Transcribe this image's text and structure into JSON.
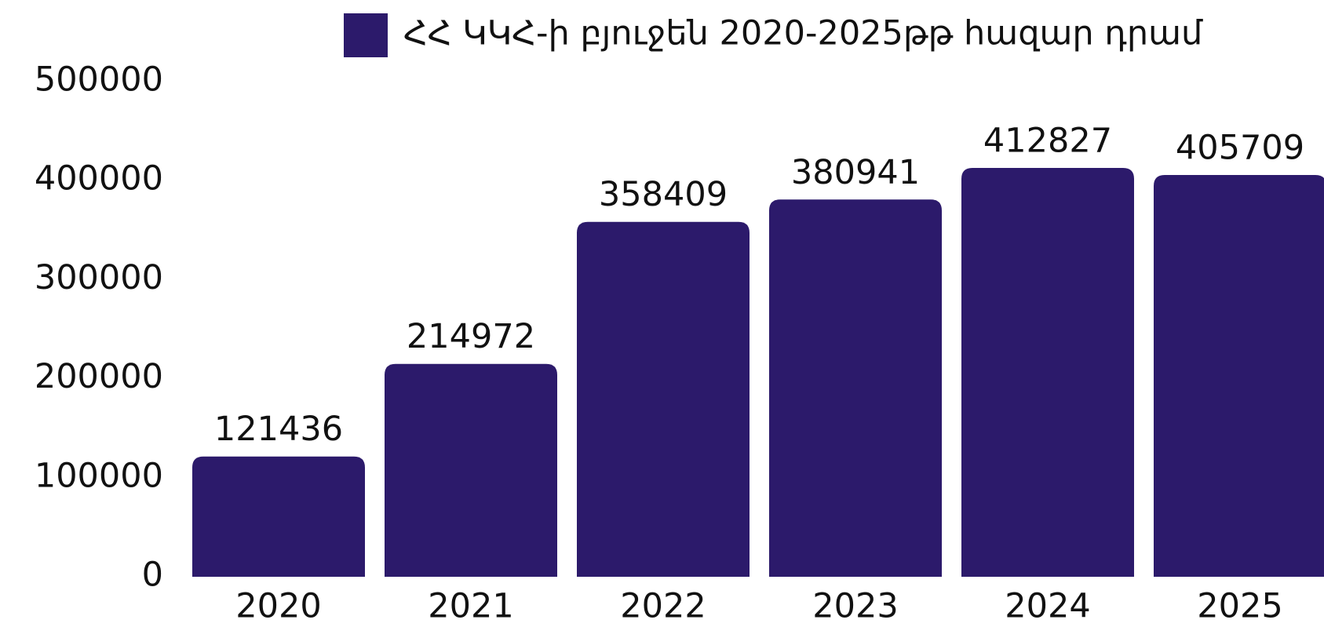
{
  "chart_data": {
    "type": "bar",
    "categories": [
      "2020",
      "2021",
      "2022",
      "2023",
      "2024",
      "2025"
    ],
    "series": [
      {
        "name": "ՀՀ ԿԿՀ-ի բյուջեն 2020-2025թթ հազար դրամ",
        "color": "#2c1a6b",
        "values": [
          121436,
          214972,
          358409,
          380941,
          412827,
          405709
        ]
      }
    ],
    "ylim": [
      0,
      500000
    ],
    "yticks": [
      0,
      100000,
      200000,
      300000,
      400000,
      500000
    ],
    "legend": "top"
  }
}
